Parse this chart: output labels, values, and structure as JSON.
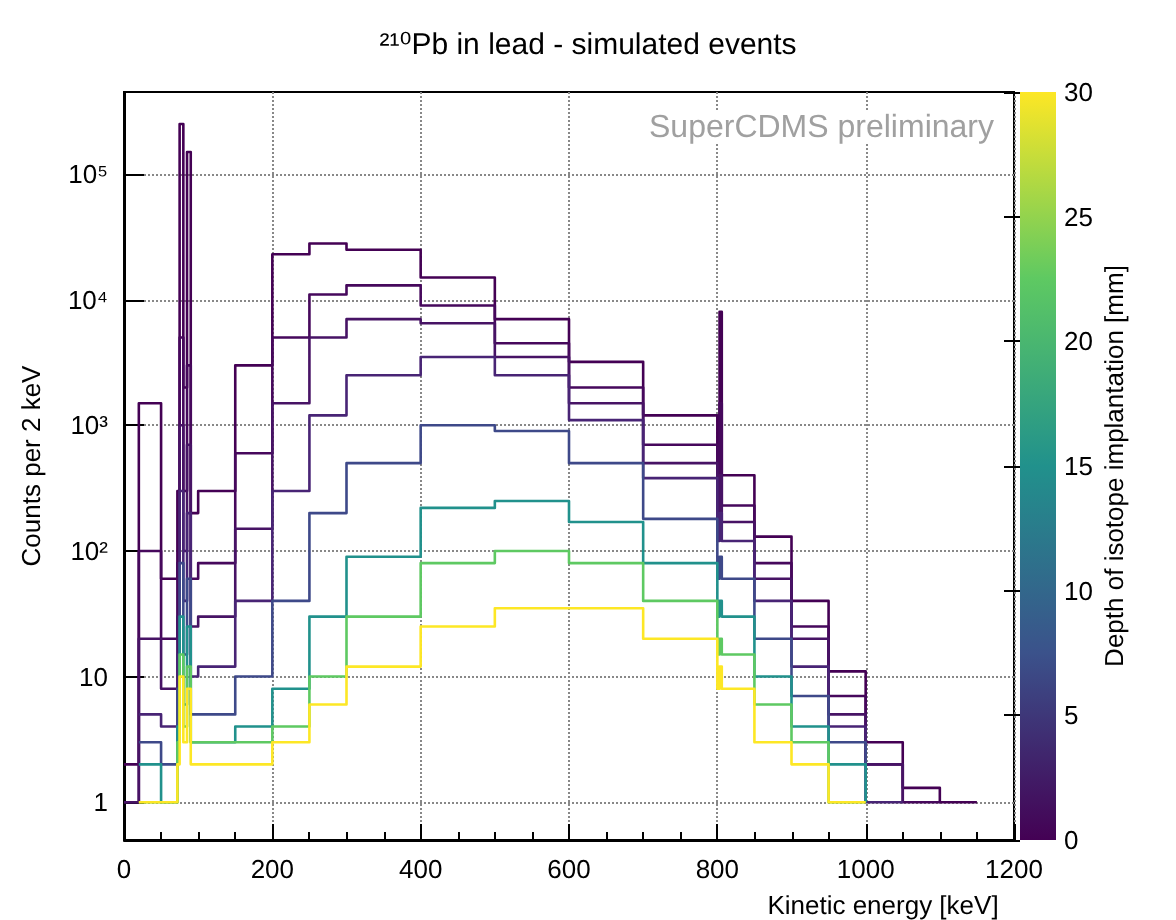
{
  "chart_data": {
    "type": "step",
    "title": "²¹⁰Pb in lead - simulated events",
    "xlabel": "Kinetic energy [keV]",
    "ylabel": "Counts per 2 keV",
    "clabel": "Depth of isotope implantation [mm]",
    "annotations": [
      "SuperCDMS preliminary"
    ],
    "x": [
      0,
      20,
      50,
      72,
      75,
      80,
      85,
      90,
      100,
      150,
      200,
      250,
      300,
      400,
      500,
      600,
      700,
      800,
      803,
      806,
      850,
      900,
      950,
      1000,
      1050,
      1100,
      1150
    ],
    "series": [
      {
        "color": "#440154",
        "values": [
          2,
          1500,
          60,
          300,
          250000,
          2000,
          150000,
          200,
          300,
          3000,
          23000,
          28000,
          25000,
          15000,
          7000,
          3200,
          1200,
          400,
          8000,
          400,
          130,
          40,
          11,
          3,
          1.3,
          1,
          1
        ]
      },
      {
        "color": "#46085c",
        "values": [
          1,
          100,
          20,
          80,
          5000,
          300,
          3000,
          60,
          80,
          600,
          5000,
          11000,
          13000,
          9000,
          4500,
          2000,
          700,
          230,
          1500,
          230,
          80,
          25,
          7,
          2,
          1,
          1,
          null
        ]
      },
      {
        "color": "#471365",
        "values": [
          1,
          20,
          8,
          30,
          1000,
          100,
          700,
          25,
          30,
          150,
          1500,
          5000,
          7000,
          6500,
          3500,
          1500,
          500,
          170,
          400,
          170,
          60,
          20,
          5,
          2,
          1,
          null,
          null
        ]
      },
      {
        "color": "#482475",
        "values": [
          null,
          5,
          4,
          15,
          300,
          40,
          200,
          10,
          12,
          40,
          300,
          1200,
          2500,
          3500,
          2500,
          1100,
          380,
          120,
          200,
          120,
          40,
          12,
          4,
          1,
          1,
          null,
          null
        ]
      },
      {
        "color": "#3e4989",
        "values": [
          null,
          3,
          2,
          8,
          80,
          15,
          60,
          5,
          5,
          10,
          40,
          200,
          500,
          1000,
          900,
          500,
          180,
          60,
          90,
          60,
          20,
          7,
          3,
          1,
          null,
          null,
          null
        ]
      },
      {
        "color": "#21918c",
        "values": [
          null,
          2,
          1,
          4,
          30,
          6,
          25,
          3,
          3,
          4,
          8,
          30,
          90,
          220,
          250,
          170,
          80,
          30,
          40,
          30,
          10,
          4,
          2,
          1,
          null,
          null,
          null
        ]
      },
      {
        "color": "#5ec962",
        "values": [
          null,
          1,
          1,
          3,
          15,
          4,
          12,
          3,
          3,
          3,
          4,
          10,
          30,
          80,
          100,
          80,
          40,
          15,
          20,
          15,
          6,
          3,
          1,
          1,
          null,
          null,
          null
        ]
      },
      {
        "color": "#fde725",
        "values": [
          null,
          1,
          1,
          2,
          10,
          3,
          8,
          2,
          2,
          2,
          3,
          6,
          12,
          25,
          35,
          35,
          20,
          8,
          12,
          8,
          3,
          2,
          1,
          1,
          null,
          null,
          null
        ]
      }
    ],
    "log": "y",
    "grid": true,
    "xlim": [
      0,
      1200
    ],
    "xticks": [
      0,
      200,
      400,
      600,
      800,
      1000,
      1200
    ],
    "ylim": [
      0.5,
      450000
    ],
    "yticks": [
      1,
      10,
      {
        "value": 100,
        "label": "10²"
      },
      {
        "value": 1000,
        "label": "10³"
      },
      {
        "value": 10000,
        "label": "10⁴"
      },
      {
        "value": 100000,
        "label": "10⁵"
      }
    ],
    "clim": [
      0,
      30
    ],
    "cticks": [
      0,
      5,
      10,
      15,
      20,
      25,
      30
    ]
  }
}
